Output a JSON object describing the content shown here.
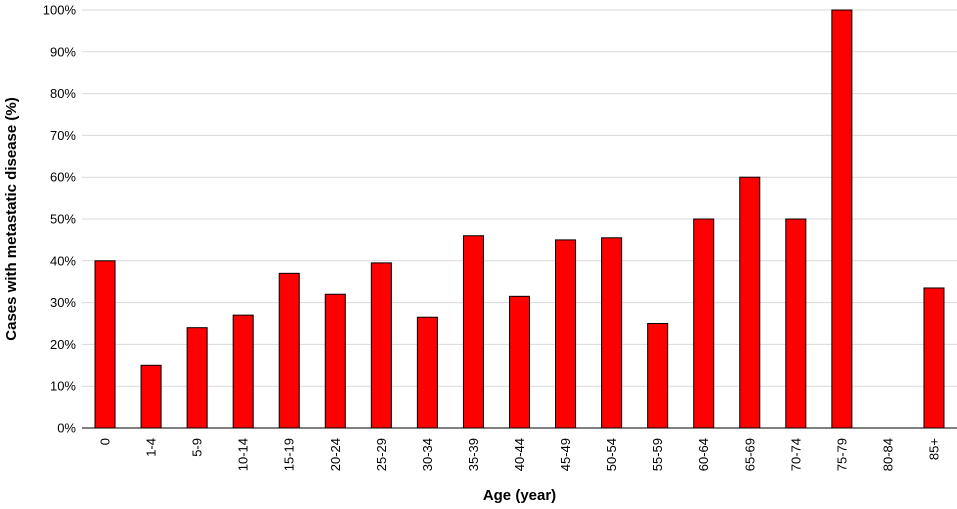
{
  "chart_data": {
    "type": "bar",
    "categories": [
      "0",
      "1-4",
      "5-9",
      "10-14",
      "15-19",
      "20-24",
      "25-29",
      "30-34",
      "35-39",
      "40-44",
      "45-49",
      "50-54",
      "55-59",
      "60-64",
      "65-69",
      "70-74",
      "75-79",
      "80-84",
      "85+"
    ],
    "values": [
      40,
      15,
      24,
      27,
      37,
      32,
      39.5,
      26.5,
      46,
      31.5,
      45,
      45.5,
      25,
      50,
      60,
      50,
      100,
      null,
      33.5
    ],
    "y_ticks": [
      "0%",
      "10%",
      "20%",
      "30%",
      "40%",
      "50%",
      "60%",
      "70%",
      "80%",
      "90%",
      "100%"
    ],
    "xlabel": "Age (year)",
    "ylabel": "Cases with metastatic disease (%)",
    "ylim": [
      0,
      100
    ],
    "grid": "horizontal",
    "legend": "none",
    "bar_color": "#ff0000",
    "bar_edge_color": "#000000"
  }
}
